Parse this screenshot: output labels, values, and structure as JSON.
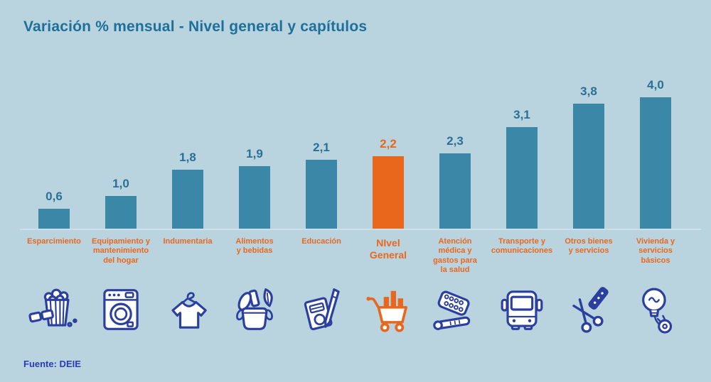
{
  "header": {
    "title": "Variación % mensual - Nivel general y capítulos"
  },
  "footer": {
    "source": "Fuente: DEIE"
  },
  "colors": {
    "background": "#b9d3df",
    "bar": "#3a87a7",
    "highlight": "#e8671d",
    "value_label": "#2a7095",
    "title_text": "#1d7099",
    "category_label": "#e9681e",
    "icon_navy": "#2b3f9e",
    "source_text": "#2a3bb8",
    "baseline": "#cde0e9"
  },
  "chart_data": {
    "type": "bar",
    "title": "Variación % mensual - Nivel general y capítulos",
    "source": "Fuente: DEIE",
    "xlabel": "",
    "ylabel": "Variación % mensual",
    "ylim": [
      0,
      4.4
    ],
    "grid": false,
    "legend": false,
    "categories": [
      "Esparcimiento",
      "Equipamiento y mantenimiento del hogar",
      "Indumentaria",
      "Alimentos y bebidas",
      "Educación",
      "NIvel General",
      "Atención médica y gastos para la salud",
      "Transporte y comunicaciones",
      "Otros bienes y servicios",
      "Vivienda y servicios básicos"
    ],
    "label_lines": [
      [
        "Esparcimiento"
      ],
      [
        "Equipamiento y",
        "mantenimiento",
        "del hogar"
      ],
      [
        "Indumentaria"
      ],
      [
        "Alimentos",
        "y bebidas"
      ],
      [
        "Educación"
      ],
      [
        "NIvel",
        "General"
      ],
      [
        "Atención",
        "médica y",
        "gastos para",
        "la salud"
      ],
      [
        "Transporte y",
        "comunicaciones"
      ],
      [
        "Otros bienes",
        "y servicios"
      ],
      [
        "Vivienda y",
        "servicios",
        "básicos"
      ]
    ],
    "values": [
      0.6,
      1.0,
      1.8,
      1.9,
      2.1,
      2.2,
      2.3,
      3.1,
      3.8,
      4.0
    ],
    "value_labels": [
      "0,6",
      "1,0",
      "1,8",
      "1,9",
      "2,1",
      "2,2",
      "2,3",
      "3,1",
      "3,8",
      "4,0"
    ],
    "highlight_index": 5,
    "highlight_note": "NIvel General bar and its labels are orange; all other bars teal",
    "icons": [
      "popcorn-3d-glasses-icon",
      "washing-machine-icon",
      "tshirt-hanger-icon",
      "food-basket-icon",
      "notebook-pen-icon",
      "shopping-cart-icon",
      "medicine-pills-icon",
      "bus-icon",
      "scissors-comb-icon",
      "lightbulb-plug-icon"
    ]
  }
}
